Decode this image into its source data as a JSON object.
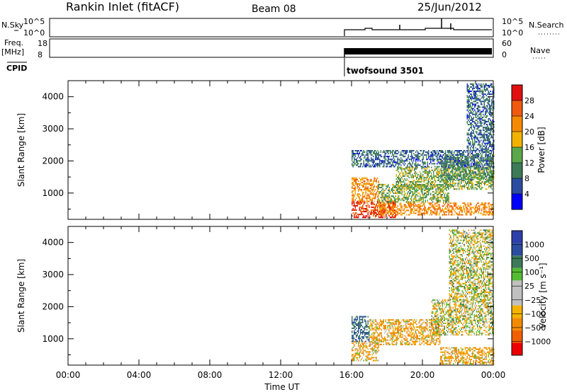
{
  "header": {
    "title": "Rankin Inlet (fitACF)",
    "beam": "Beam 08",
    "date": "25/Jun/2012"
  },
  "top_panels": {
    "nsky_label": "N.Sky",
    "nsky_ticks": [
      "10^5",
      "10^0"
    ],
    "nsearch_label": "N.Search",
    "nsearch_ticks": [
      "10^5",
      "10^0"
    ],
    "freq_label": "Freq.",
    "freq_unit": "[MHz]",
    "freq_ticks": [
      "18",
      "8"
    ],
    "nave_label": "Nave",
    "nave_ticks": [
      "60",
      "0"
    ],
    "cpid_label": "CPID",
    "cpid_value": "twofsound 3501"
  },
  "colors": {
    "power": [
      "#0000ff",
      "#2c4d9f",
      "#3d7a58",
      "#5aa84a",
      "#f2b200",
      "#f58a00",
      "#ef5a10",
      "#e01010",
      "#cc0000"
    ],
    "velocity": [
      "#ee0000",
      "#f06000",
      "#f28a00",
      "#f5b200",
      "#c0c0c0",
      "#c0c0c0",
      "#55bb33",
      "#3d7a58",
      "#2c4d9f",
      "#2d3fa8"
    ]
  },
  "chart_data": [
    {
      "type": "heatmap",
      "name": "power",
      "xlabel": "",
      "ylabel": "Slant Range [km]",
      "xlim": [
        "00:00",
        "24:00"
      ],
      "ylim": [
        180,
        4500
      ],
      "y_ticks": [
        "1000",
        "2000",
        "3000",
        "4000"
      ],
      "colorbar": {
        "label": "Power [dB]",
        "ticks": [
          "4",
          "8",
          "12",
          "16",
          "20",
          "24",
          "28"
        ],
        "range": [
          0,
          32
        ]
      },
      "data_start": "16:00",
      "regions": [
        {
          "t": [
            16.0,
            18.5
          ],
          "r": [
            220,
            720
          ],
          "value": 28
        },
        {
          "t": [
            16.0,
            17.5
          ],
          "r": [
            720,
            1450
          ],
          "value": 22
        },
        {
          "t": [
            17.5,
            24.0
          ],
          "r": [
            300,
            700
          ],
          "value": 22
        },
        {
          "t": [
            17.5,
            21.5
          ],
          "r": [
            700,
            1250
          ],
          "value": 14
        },
        {
          "t": [
            18.5,
            24.0
          ],
          "r": [
            1100,
            1800
          ],
          "value": 14
        },
        {
          "t": [
            21.0,
            24.0
          ],
          "r": [
            1400,
            2200
          ],
          "value": 12
        },
        {
          "t": [
            16.0,
            24.0
          ],
          "r": [
            1800,
            2300
          ],
          "value": 8
        },
        {
          "t": [
            22.5,
            24.0
          ],
          "r": [
            2300,
            4400
          ],
          "value": 8
        }
      ]
    },
    {
      "type": "heatmap",
      "name": "velocity",
      "xlabel": "Time UT",
      "ylabel": "Slant Range [km]",
      "xlim": [
        "00:00",
        "24:00"
      ],
      "ylim": [
        180,
        4500
      ],
      "x_ticks": [
        "00:00",
        "04:00",
        "08:00",
        "12:00",
        "16:00",
        "20:00",
        "00:00"
      ],
      "y_ticks": [
        "1000",
        "2000",
        "3000",
        "4000"
      ],
      "colorbar": {
        "label": "Velocity [m s⁻¹]",
        "ticks": [
          "1000",
          "500",
          "100",
          "25",
          "−25",
          "−100",
          "−500",
          "−1000"
        ]
      },
      "data_start": "16:00",
      "regions": [
        {
          "t": [
            16.0,
            17.5
          ],
          "r": [
            300,
            900
          ],
          "value": -100
        },
        {
          "t": [
            16.0,
            17.0
          ],
          "r": [
            900,
            1700
          ],
          "value": 500
        },
        {
          "t": [
            17.0,
            21.0
          ],
          "r": [
            800,
            1600
          ],
          "value": -100
        },
        {
          "t": [
            21.0,
            24.0
          ],
          "r": [
            200,
            700
          ],
          "value": -100
        },
        {
          "t": [
            20.5,
            24.0
          ],
          "r": [
            1100,
            2200
          ],
          "value": 0
        },
        {
          "t": [
            21.5,
            24.0
          ],
          "r": [
            2200,
            4400
          ],
          "value": 0
        }
      ]
    }
  ]
}
